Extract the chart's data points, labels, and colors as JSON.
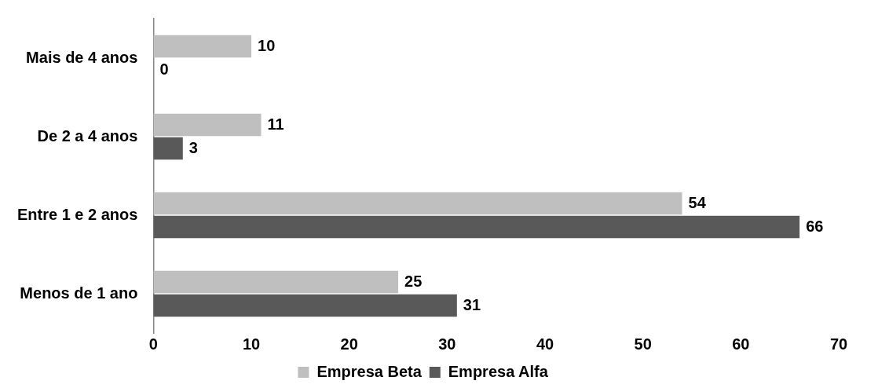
{
  "chart_data": {
    "type": "bar",
    "orientation": "horizontal",
    "categories": [
      "Mais de 4 anos",
      "De 2 a 4 anos",
      "Entre 1 e 2 anos",
      "Menos de 1 ano"
    ],
    "series": [
      {
        "name": "Empresa Beta",
        "color": "#bfbfbf",
        "values": [
          10,
          11,
          54,
          25
        ]
      },
      {
        "name": "Empresa Alfa",
        "color": "#595959",
        "values": [
          0,
          3,
          66,
          31
        ]
      }
    ],
    "xlim": [
      0,
      70
    ],
    "xticks": [
      0,
      10,
      20,
      30,
      40,
      50,
      60,
      70
    ],
    "grid": false,
    "legend": "bottom",
    "data_labels": true
  }
}
